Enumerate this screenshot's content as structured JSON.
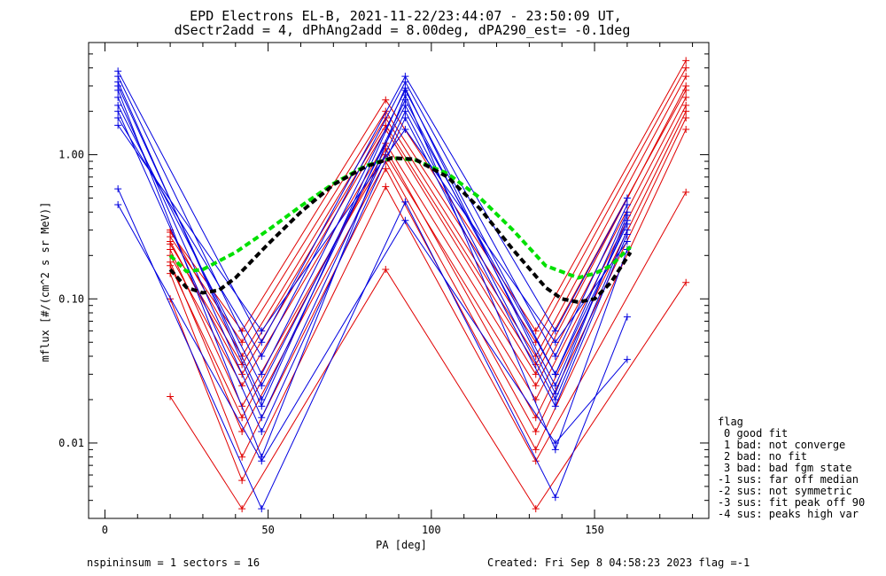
{
  "chart_data": {
    "type": "line",
    "title": "EPD Electrons EL-B, 2021-11-22/23:44:07 - 23:50:09 UT,",
    "subtitle": "dSectr2add = 4, dPhAng2add = 8.00deg, dPA290_est=  -0.1deg",
    "xlabel": "PA [deg]",
    "ylabel": "mflux [#/(cm^2 s sr MeV)]",
    "xlim": [
      -5,
      185
    ],
    "ylim": [
      0.003,
      6
    ],
    "yscale": "log",
    "x_ticks": [
      "0",
      "50",
      "100",
      "150"
    ],
    "y_ticks": [
      "0.01",
      "0.10",
      "1.00"
    ],
    "legend_title": "flag",
    "legend": [
      "0 good fit",
      "1 bad: not converge",
      "2 bad: no fit",
      "3 bad: bad fgm state",
      "-1 sus: far off median",
      "-2 sus: not symmetric",
      "-3 sus: fit peak off 90",
      "-4 sus: peaks high var"
    ],
    "footer_left": "nspininsum =  1  sectors = 16",
    "footer_right": "Created: Fri Sep  8 04:58:23 2023   flag =-1",
    "colors": {
      "red": "#e00000",
      "blue": "#0000e0",
      "green": "#00e000",
      "black": "#000000"
    },
    "series": [
      {
        "color": "red",
        "x": [
          20,
          42,
          86,
          132,
          178
        ],
        "y": [
          0.25,
          0.03,
          1.5,
          0.03,
          3.0
        ]
      },
      {
        "color": "red",
        "x": [
          20,
          42,
          86,
          132,
          178
        ],
        "y": [
          0.2,
          0.025,
          1.2,
          0.025,
          2.5
        ]
      },
      {
        "color": "red",
        "x": [
          20,
          42,
          86,
          132,
          178
        ],
        "y": [
          0.3,
          0.04,
          1.8,
          0.04,
          3.5
        ]
      },
      {
        "color": "red",
        "x": [
          20,
          42,
          86,
          132,
          178
        ],
        "y": [
          0.22,
          0.018,
          1.0,
          0.02,
          2.2
        ]
      },
      {
        "color": "red",
        "x": [
          20,
          42,
          86,
          132,
          178
        ],
        "y": [
          0.18,
          0.012,
          0.9,
          0.012,
          1.8
        ]
      },
      {
        "color": "red",
        "x": [
          20,
          42,
          86,
          132,
          178
        ],
        "y": [
          0.27,
          0.05,
          2.0,
          0.05,
          4.0
        ]
      },
      {
        "color": "red",
        "x": [
          20,
          42,
          86,
          132,
          178
        ],
        "y": [
          0.15,
          0.008,
          0.8,
          0.009,
          1.5
        ]
      },
      {
        "color": "red",
        "x": [
          20,
          42,
          86,
          132,
          178
        ],
        "y": [
          0.1,
          0.0055,
          0.6,
          0.0075,
          0.55
        ]
      },
      {
        "color": "red",
        "x": [
          20,
          42,
          86,
          132,
          178
        ],
        "y": [
          0.021,
          0.0035,
          0.16,
          0.0035,
          0.13
        ]
      },
      {
        "color": "red",
        "x": [
          20,
          42,
          86,
          132,
          178
        ],
        "y": [
          0.29,
          0.06,
          2.4,
          0.06,
          4.5
        ]
      },
      {
        "color": "red",
        "x": [
          20,
          42,
          86,
          132,
          178
        ],
        "y": [
          0.24,
          0.035,
          1.6,
          0.035,
          2.8
        ]
      },
      {
        "color": "red",
        "x": [
          20,
          42,
          86,
          132,
          178
        ],
        "y": [
          0.17,
          0.015,
          1.1,
          0.015,
          2.0
        ]
      },
      {
        "color": "blue",
        "x": [
          4,
          48,
          92,
          138,
          160
        ],
        "y": [
          3.5,
          0.03,
          2.8,
          0.03,
          0.4
        ]
      },
      {
        "color": "blue",
        "x": [
          4,
          48,
          92,
          138,
          160
        ],
        "y": [
          3.0,
          0.02,
          2.4,
          0.025,
          0.35
        ]
      },
      {
        "color": "blue",
        "x": [
          4,
          48,
          92,
          138,
          160
        ],
        "y": [
          2.5,
          0.015,
          2.0,
          0.02,
          0.3
        ]
      },
      {
        "color": "blue",
        "x": [
          4,
          48,
          92,
          138,
          160
        ],
        "y": [
          2.0,
          0.012,
          1.8,
          0.018,
          0.28
        ]
      },
      {
        "color": "blue",
        "x": [
          4,
          48,
          92,
          138,
          160
        ],
        "y": [
          1.8,
          0.04,
          3.2,
          0.04,
          0.45
        ]
      },
      {
        "color": "blue",
        "x": [
          4,
          48,
          92,
          138,
          160
        ],
        "y": [
          1.6,
          0.06,
          1.5,
          0.05,
          0.25
        ]
      },
      {
        "color": "blue",
        "x": [
          4,
          48,
          92,
          138,
          160
        ],
        "y": [
          2.8,
          0.008,
          2.6,
          0.009,
          0.22
        ]
      },
      {
        "color": "blue",
        "x": [
          4,
          48,
          92,
          138,
          160
        ],
        "y": [
          0.58,
          0.0035,
          0.47,
          0.0042,
          0.075
        ]
      },
      {
        "color": "blue",
        "x": [
          4,
          48,
          92,
          138,
          160
        ],
        "y": [
          0.45,
          0.0075,
          0.35,
          0.01,
          0.038
        ]
      },
      {
        "color": "blue",
        "x": [
          4,
          48,
          92,
          138,
          160
        ],
        "y": [
          3.8,
          0.05,
          3.5,
          0.06,
          0.5
        ]
      },
      {
        "color": "blue",
        "x": [
          4,
          48,
          92,
          138,
          160
        ],
        "y": [
          2.2,
          0.025,
          2.2,
          0.03,
          0.33
        ]
      },
      {
        "color": "blue",
        "x": [
          4,
          48,
          92,
          138,
          160
        ],
        "y": [
          3.2,
          0.018,
          2.9,
          0.022,
          0.38
        ]
      }
    ],
    "fits": [
      {
        "color": "green",
        "x": [
          20,
          25,
          30,
          40,
          50,
          60,
          70,
          80,
          88,
          95,
          105,
          115,
          125,
          135,
          145,
          150,
          155,
          161
        ],
        "y": [
          0.2,
          0.155,
          0.16,
          0.21,
          0.3,
          0.44,
          0.63,
          0.84,
          0.95,
          0.92,
          0.74,
          0.5,
          0.3,
          0.17,
          0.14,
          0.15,
          0.17,
          0.23
        ]
      },
      {
        "color": "black",
        "x": [
          20,
          25,
          30,
          35,
          40,
          50,
          60,
          70,
          80,
          88,
          95,
          105,
          115,
          125,
          135,
          140,
          145,
          150,
          155,
          161
        ],
        "y": [
          0.16,
          0.12,
          0.11,
          0.115,
          0.14,
          0.24,
          0.4,
          0.62,
          0.83,
          0.95,
          0.93,
          0.7,
          0.42,
          0.22,
          0.12,
          0.1,
          0.095,
          0.1,
          0.13,
          0.21
        ]
      }
    ]
  }
}
